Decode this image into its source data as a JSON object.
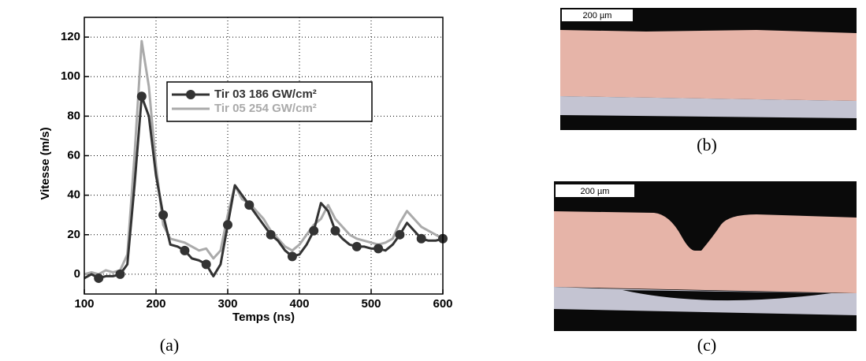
{
  "chart_data": {
    "type": "line",
    "x_label": "Temps (ns)",
    "y_label": "Vitesse (m/s)",
    "x": [
      100,
      110,
      120,
      130,
      140,
      150,
      160,
      170,
      180,
      190,
      200,
      210,
      220,
      230,
      240,
      250,
      260,
      270,
      280,
      290,
      300,
      310,
      320,
      330,
      340,
      350,
      360,
      370,
      380,
      390,
      400,
      410,
      420,
      430,
      440,
      450,
      460,
      470,
      480,
      490,
      500,
      510,
      520,
      530,
      540,
      550,
      560,
      570,
      580,
      590,
      600
    ],
    "series": [
      {
        "name": "Tir 03 186 GW/cm²",
        "color": "#333333",
        "marker": "circle",
        "values": [
          -2,
          0,
          -2,
          -1,
          -1,
          0,
          5,
          45,
          90,
          80,
          50,
          30,
          15,
          14,
          12,
          8,
          7,
          5,
          -1,
          5,
          25,
          45,
          40,
          35,
          30,
          25,
          20,
          17,
          12,
          9,
          10,
          15,
          22,
          36,
          32,
          22,
          18,
          15,
          14,
          14,
          13,
          13,
          12,
          15,
          20,
          26,
          22,
          18,
          17,
          17,
          18
        ]
      },
      {
        "name": "Tir 05 254 GW/cm²",
        "color": "#aaaaaa",
        "marker": "none",
        "values": [
          0,
          1,
          0,
          2,
          1,
          2,
          10,
          60,
          118,
          95,
          55,
          25,
          18,
          17,
          16,
          14,
          12,
          13,
          8,
          12,
          30,
          45,
          38,
          36,
          32,
          28,
          22,
          18,
          14,
          12,
          15,
          20,
          25,
          28,
          35,
          28,
          24,
          20,
          18,
          17,
          16,
          15,
          16,
          18,
          26,
          32,
          28,
          24,
          22,
          20,
          18
        ]
      }
    ],
    "xlim": [
      100,
      600
    ],
    "xticks": [
      100,
      200,
      300,
      400,
      500,
      600
    ],
    "ylim": [
      -10,
      130
    ],
    "yticks": [
      0,
      20,
      40,
      60,
      80,
      100,
      120
    ],
    "grid": true
  },
  "captions": [
    "(a)",
    "(b)",
    "(c)"
  ],
  "scale_bars": [
    "200 µm",
    "200 µm"
  ]
}
